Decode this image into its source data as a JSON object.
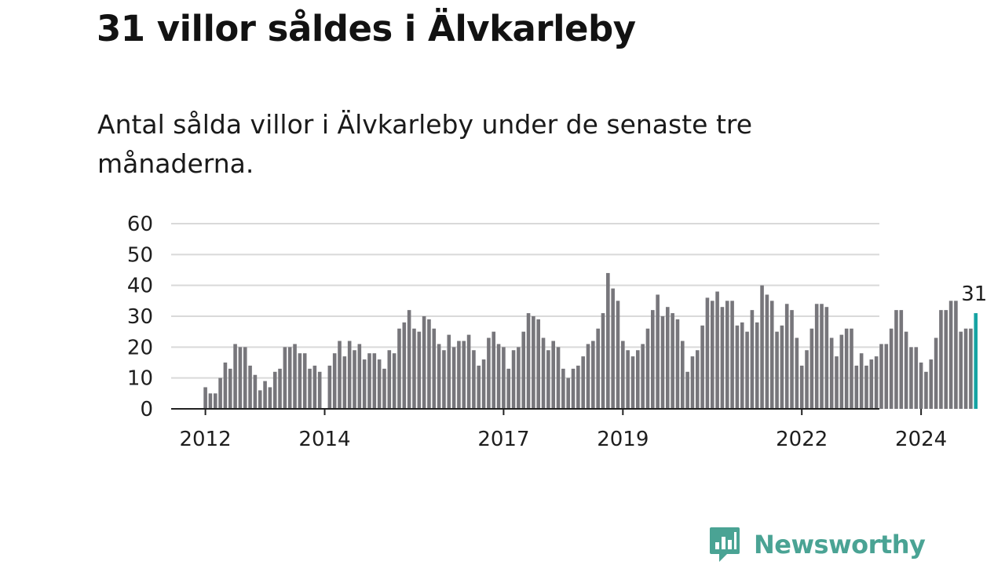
{
  "title": "31 villor såldes i Älvkarleby",
  "subtitle": "Antal sålda villor i Älvkarleby under de senaste tre månaderna.",
  "colors": {
    "bar": "#77767b",
    "highlight": "#16a3a3",
    "grid": "#d9d9d9",
    "axis": "#222222",
    "brand": "#4aa394"
  },
  "brand": {
    "name": "Newsworthy",
    "icon": "bar-chart-speech-bubble-icon"
  },
  "chart_data": {
    "type": "bar",
    "ylim": [
      0,
      60
    ],
    "yticks": [
      0,
      10,
      20,
      30,
      40,
      50,
      60
    ],
    "grid": true,
    "x_tick_labels": [
      {
        "label": "2012",
        "at": "2012-01"
      },
      {
        "label": "2014",
        "at": "2014-01"
      },
      {
        "label": "2017",
        "at": "2017-01"
      },
      {
        "label": "2019",
        "at": "2019-01"
      },
      {
        "label": "2022",
        "at": "2022-01"
      },
      {
        "label": "2024",
        "at": "2024-01"
      }
    ],
    "start_month": "2012-01",
    "values": [
      7,
      5,
      5,
      10,
      15,
      13,
      21,
      20,
      20,
      14,
      11,
      6,
      9,
      7,
      12,
      13,
      20,
      20,
      21,
      18,
      18,
      13,
      14,
      12,
      null,
      14,
      18,
      22,
      17,
      22,
      19,
      21,
      16,
      18,
      18,
      16,
      13,
      19,
      18,
      26,
      28,
      32,
      26,
      25,
      30,
      29,
      26,
      21,
      19,
      24,
      20,
      22,
      22,
      24,
      19,
      14,
      16,
      23,
      25,
      21,
      20,
      13,
      19,
      20,
      25,
      31,
      30,
      29,
      23,
      19,
      22,
      20,
      13,
      10,
      13,
      14,
      17,
      21,
      22,
      26,
      31,
      44,
      39,
      35,
      22,
      19,
      17,
      19,
      21,
      26,
      32,
      37,
      30,
      33,
      31,
      29,
      22,
      12,
      17,
      19,
      27,
      36,
      35,
      38,
      33,
      35,
      35,
      27,
      28,
      25,
      32,
      28,
      40,
      37,
      35,
      25,
      27,
      34,
      32,
      23,
      14,
      19,
      26,
      34,
      34,
      33,
      23,
      17,
      24,
      26,
      26,
      14,
      18,
      14,
      16,
      17,
      21,
      21,
      26,
      32,
      32,
      25,
      20,
      20,
      15,
      12,
      16,
      23,
      32,
      32,
      35,
      35,
      25,
      26,
      26,
      31
    ],
    "highlight": {
      "label": "31",
      "value": 31
    }
  }
}
